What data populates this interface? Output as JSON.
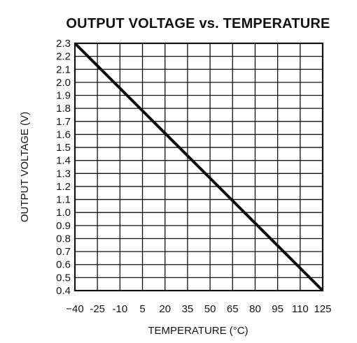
{
  "chart_data": {
    "type": "line",
    "title": "OUTPUT VOLTAGE vs. TEMPERATURE",
    "xlabel": "TEMPERATURE (°C)",
    "ylabel": "OUTPUT VOLTAGE (V)",
    "xlim": [
      -40,
      125
    ],
    "ylim": [
      0.4,
      2.3
    ],
    "x_ticks": [
      -40,
      -25,
      -10,
      5,
      20,
      35,
      50,
      65,
      80,
      95,
      110,
      125
    ],
    "x_tick_labels": [
      "−40",
      "-25",
      "-10",
      "5",
      "20",
      "35",
      "50",
      "65",
      "80",
      "95",
      "110",
      "125"
    ],
    "y_ticks": [
      0.4,
      0.5,
      0.6,
      0.7,
      0.8,
      0.9,
      1.0,
      1.1,
      1.2,
      1.3,
      1.4,
      1.5,
      1.6,
      1.7,
      1.8,
      1.9,
      2.0,
      2.1,
      2.2,
      2.3
    ],
    "y_tick_labels": [
      "0.4",
      "0.5",
      "0.6",
      "0.7",
      "0.8",
      "0.9",
      "1.0",
      "1.1",
      "1.2",
      "1.3",
      "1.4",
      "1.5",
      "1.6",
      "1.7",
      "1.8",
      "1.9",
      "2.0",
      "2.1",
      "2.2",
      "2.3"
    ],
    "grid": true,
    "legend": "none",
    "series": [
      {
        "x": [
          -40,
          125
        ],
        "y": [
          2.3,
          0.4
        ],
        "color": "#0a0a0a"
      }
    ]
  }
}
